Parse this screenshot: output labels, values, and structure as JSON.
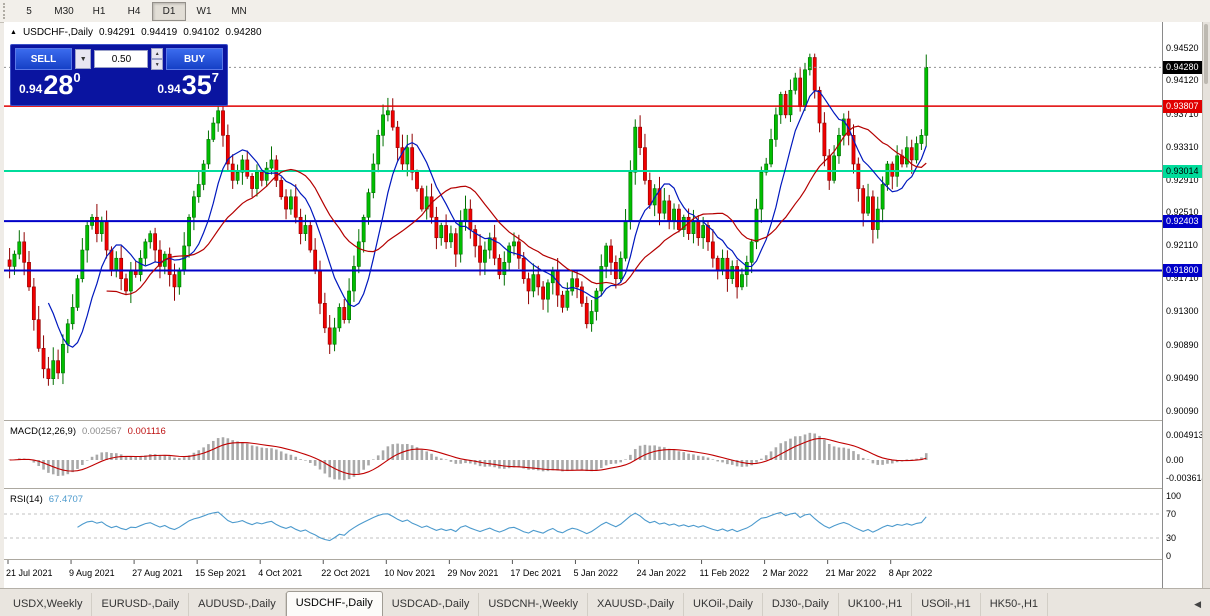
{
  "icons": {
    "collapse": "▲",
    "dropdown": "▼",
    "spin_up": "▲",
    "spin_down": "▼",
    "tab_nav": "◀"
  },
  "toolbar": {
    "timeframes": [
      {
        "label": "5",
        "active": false
      },
      {
        "label": "M30",
        "active": false
      },
      {
        "label": "H1",
        "active": false
      },
      {
        "label": "H4",
        "active": false
      },
      {
        "label": "D1",
        "active": true
      },
      {
        "label": "W1",
        "active": false
      },
      {
        "label": "MN",
        "active": false
      }
    ]
  },
  "chart": {
    "collapse_glyph": "▲",
    "symbol_period": "USDCHF-,Daily",
    "ohlc": {
      "open": "0.94291",
      "high": "0.94419",
      "low": "0.94102",
      "close": "0.94280"
    },
    "trade_panel": {
      "sell_label": "SELL",
      "buy_label": "BUY",
      "volume": "0.50",
      "sell_price": {
        "big": "0.94",
        "pips": "28",
        "point": "0"
      },
      "buy_price": {
        "big": "0.94",
        "pips": "35",
        "point": "7"
      }
    },
    "scale": {
      "p_max": 0.9476,
      "p_min": 0.9
    },
    "price_axis": {
      "labels": [
        "0.94520",
        "0.94120",
        "0.93710",
        "0.93310",
        "0.92910",
        "0.92510",
        "0.92110",
        "0.91710",
        "0.91300",
        "0.90890",
        "0.90490",
        "0.90090"
      ],
      "badges": [
        {
          "value": "0.94280",
          "price": 0.9428,
          "bg": "#000000",
          "fg": "#FFFFFF"
        },
        {
          "value": "0.93807",
          "price": 0.93807,
          "bg": "#E00000",
          "fg": "#FFFFFF"
        },
        {
          "value": "0.93014",
          "price": 0.93014,
          "bg": "#00DC9B",
          "fg": "#000000"
        },
        {
          "value": "0.92403",
          "price": 0.92403,
          "bg": "#0000C8",
          "fg": "#FFFFFF"
        },
        {
          "value": "0.91800",
          "price": 0.918,
          "bg": "#0000C8",
          "fg": "#FFFFFF"
        }
      ]
    },
    "levels": [
      {
        "price": 0.93807,
        "color": "#E00000",
        "width": 1.5
      },
      {
        "price": 0.93014,
        "color": "#00DC9B",
        "width": 2
      },
      {
        "price": 0.92403,
        "color": "#0000C8",
        "width": 2
      },
      {
        "price": 0.918,
        "color": "#0000C8",
        "width": 2
      }
    ],
    "bid_line": {
      "price": 0.9428,
      "color": "#909090"
    }
  },
  "chart_data": {
    "type": "candlestick",
    "symbol": "USDCHF",
    "timeframe": "Daily",
    "ohlc_display": {
      "open": 0.94291,
      "high": 0.94419,
      "low": 0.94102,
      "close": 0.9428
    },
    "y_axis_ticks": [
      0.9452,
      0.9412,
      0.9371,
      0.9331,
      0.9291,
      0.9251,
      0.9211,
      0.9171,
      0.913,
      0.9089,
      0.9049,
      0.9009
    ],
    "horizontal_levels": [
      0.93807,
      0.93014,
      0.92403,
      0.918
    ],
    "x_labels": [
      "21 Jul 2021",
      "9 Aug 2021",
      "27 Aug 2021",
      "15 Sep 2021",
      "4 Oct 2021",
      "22 Oct 2021",
      "10 Nov 2021",
      "29 Nov 2021",
      "17 Dec 2021",
      "5 Jan 2022",
      "24 Jan 2022",
      "11 Feb 2022",
      "2 Mar 2022",
      "21 Mar 2022",
      "8 Apr 2022"
    ],
    "x_label_indices": [
      0,
      13,
      26,
      39,
      52,
      65,
      78,
      91,
      104,
      117,
      130,
      143,
      156,
      169,
      182
    ],
    "closes": [
      0.9185,
      0.92,
      0.9215,
      0.919,
      0.916,
      0.912,
      0.9085,
      0.906,
      0.9048,
      0.907,
      0.9055,
      0.909,
      0.9115,
      0.9135,
      0.917,
      0.9205,
      0.9235,
      0.9245,
      0.9225,
      0.924,
      0.9205,
      0.918,
      0.9195,
      0.917,
      0.9155,
      0.918,
      0.9175,
      0.9195,
      0.9215,
      0.9225,
      0.9205,
      0.9185,
      0.92,
      0.9175,
      0.916,
      0.918,
      0.921,
      0.9245,
      0.927,
      0.9285,
      0.931,
      0.934,
      0.936,
      0.9375,
      0.9345,
      0.931,
      0.929,
      0.93,
      0.9315,
      0.9295,
      0.928,
      0.93,
      0.929,
      0.9305,
      0.9315,
      0.929,
      0.927,
      0.9255,
      0.927,
      0.9245,
      0.9225,
      0.9235,
      0.9205,
      0.918,
      0.914,
      0.911,
      0.909,
      0.911,
      0.9135,
      0.912,
      0.9155,
      0.9185,
      0.9215,
      0.9245,
      0.9275,
      0.931,
      0.9345,
      0.937,
      0.9375,
      0.9355,
      0.933,
      0.931,
      0.933,
      0.93,
      0.928,
      0.9255,
      0.927,
      0.9245,
      0.922,
      0.9235,
      0.9215,
      0.9225,
      0.92,
      0.924,
      0.9255,
      0.923,
      0.921,
      0.919,
      0.9205,
      0.922,
      0.9195,
      0.9175,
      0.919,
      0.921,
      0.9215,
      0.9195,
      0.917,
      0.9155,
      0.9175,
      0.916,
      0.9145,
      0.9165,
      0.918,
      0.915,
      0.9135,
      0.9155,
      0.917,
      0.916,
      0.914,
      0.9115,
      0.913,
      0.9155,
      0.9185,
      0.921,
      0.919,
      0.917,
      0.9195,
      0.924,
      0.93,
      0.9355,
      0.933,
      0.929,
      0.926,
      0.928,
      0.925,
      0.9265,
      0.924,
      0.9255,
      0.923,
      0.9245,
      0.9225,
      0.924,
      0.922,
      0.9235,
      0.9215,
      0.9195,
      0.918,
      0.9195,
      0.917,
      0.9185,
      0.916,
      0.9175,
      0.919,
      0.9215,
      0.9255,
      0.93,
      0.931,
      0.934,
      0.937,
      0.9395,
      0.937,
      0.94,
      0.9415,
      0.938,
      0.9425,
      0.944,
      0.94,
      0.936,
      0.932,
      0.929,
      0.932,
      0.9345,
      0.9365,
      0.9345,
      0.931,
      0.928,
      0.925,
      0.927,
      0.923,
      0.9255,
      0.9285,
      0.931,
      0.9295,
      0.932,
      0.931,
      0.933,
      0.9315,
      0.9335,
      0.9345,
      0.9428
    ],
    "indicators": {
      "macd": {
        "params": "12,26,9",
        "main": 0.002567,
        "signal": 0.001116,
        "axis": [
          0.004913,
          0.0,
          -0.003614
        ]
      },
      "rsi": {
        "params": "14",
        "value": 67.4707,
        "levels": [
          70,
          30
        ],
        "axis": [
          100,
          70,
          30,
          0
        ]
      }
    },
    "colors": {
      "up": "#00BE00",
      "up_stroke": "#006E00",
      "down": "#F00000",
      "down_stroke": "#8F0000",
      "ma_fast": "#0018BE",
      "ma_slow": "#B40000",
      "macd_hist": "#A9A9A9",
      "macd_signal": "#C00000",
      "rsi_line": "#4C9ACD",
      "rsi_level": "#C0C0C0"
    }
  },
  "macd": {
    "title": "MACD(12,26,9)",
    "value_main": "0.002567",
    "value_signal": "0.001116"
  },
  "rsi": {
    "title": "RSI(14)",
    "value": "67.4707"
  },
  "tabs": {
    "nav_glyph": "◀",
    "items": [
      {
        "label": "USDX,Weekly",
        "active": false
      },
      {
        "label": "EURUSD-,Daily",
        "active": false
      },
      {
        "label": "AUDUSD-,Daily",
        "active": false
      },
      {
        "label": "USDCHF-,Daily",
        "active": true
      },
      {
        "label": "USDCAD-,Daily",
        "active": false
      },
      {
        "label": "USDCNH-,Weekly",
        "active": false
      },
      {
        "label": "XAUUSD-,Daily",
        "active": false
      },
      {
        "label": "UKOil-,Daily",
        "active": false
      },
      {
        "label": "DJ30-,Daily",
        "active": false
      },
      {
        "label": "UK100-,H1",
        "active": false
      },
      {
        "label": "USOil-,H1",
        "active": false
      },
      {
        "label": "HK50-,H1",
        "active": false
      }
    ]
  }
}
